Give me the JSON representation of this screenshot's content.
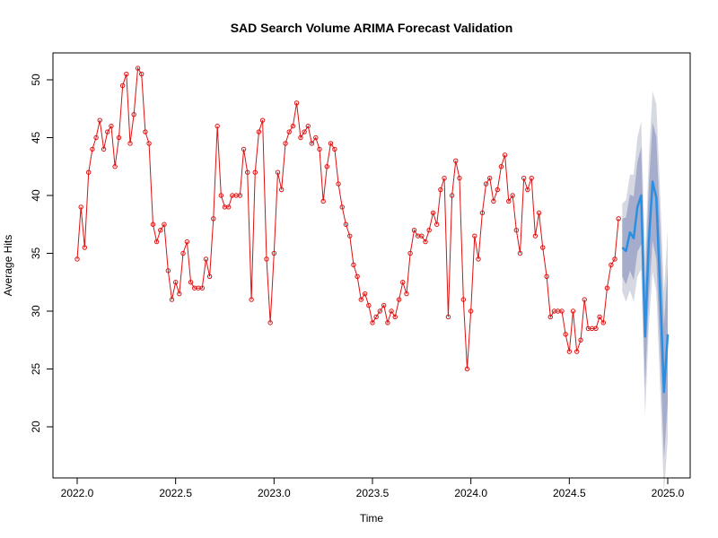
{
  "chart_data": {
    "type": "line",
    "title": "SAD Search Volume ARIMA Forecast Validation",
    "xlabel": "Time",
    "ylabel": "Average Hits",
    "xlim": [
      2022.0,
      2025.0
    ],
    "ylim": [
      20,
      50
    ],
    "x_ticks": [
      2022.0,
      2022.5,
      2023.0,
      2023.5,
      2024.0,
      2024.5,
      2025.0
    ],
    "x_tick_labels": [
      "2022.0",
      "2022.5",
      "2023.0",
      "2023.5",
      "2024.0",
      "2024.5",
      "2025.0"
    ],
    "y_ticks": [
      20,
      25,
      30,
      35,
      40,
      45,
      50
    ],
    "y_tick_labels": [
      "20",
      "25",
      "30",
      "35",
      "40",
      "45",
      "50"
    ],
    "grid": false,
    "colors": {
      "observed": "#dd1111",
      "forecast": "#2a8fe0",
      "band80": "#a6accc",
      "band95": "#d6d8e2"
    },
    "series": [
      {
        "role": "observed",
        "x": [
          2022.0,
          2022.019,
          2022.038,
          2022.058,
          2022.077,
          2022.096,
          2022.115,
          2022.135,
          2022.154,
          2022.173,
          2022.192,
          2022.212,
          2022.231,
          2022.25,
          2022.269,
          2022.288,
          2022.308,
          2022.327,
          2022.346,
          2022.365,
          2022.385,
          2022.404,
          2022.423,
          2022.442,
          2022.462,
          2022.481,
          2022.5,
          2022.519,
          2022.538,
          2022.558,
          2022.577,
          2022.596,
          2022.615,
          2022.635,
          2022.654,
          2022.673,
          2022.692,
          2022.712,
          2022.731,
          2022.75,
          2022.769,
          2022.788,
          2022.808,
          2022.827,
          2022.846,
          2022.865,
          2022.885,
          2022.904,
          2022.923,
          2022.942,
          2022.962,
          2022.981,
          2023.0,
          2023.019,
          2023.038,
          2023.058,
          2023.077,
          2023.096,
          2023.115,
          2023.135,
          2023.154,
          2023.173,
          2023.192,
          2023.212,
          2023.231,
          2023.25,
          2023.269,
          2023.288,
          2023.308,
          2023.327,
          2023.346,
          2023.365,
          2023.385,
          2023.404,
          2023.423,
          2023.442,
          2023.462,
          2023.481,
          2023.5,
          2023.519,
          2023.538,
          2023.558,
          2023.577,
          2023.596,
          2023.615,
          2023.635,
          2023.654,
          2023.673,
          2023.692,
          2023.712,
          2023.731,
          2023.75,
          2023.769,
          2023.788,
          2023.808,
          2023.827,
          2023.846,
          2023.865,
          2023.885,
          2023.904,
          2023.923,
          2023.942,
          2023.962,
          2023.981,
          2024.0,
          2024.019,
          2024.038,
          2024.058,
          2024.077,
          2024.096,
          2024.115,
          2024.135,
          2024.154,
          2024.173,
          2024.192,
          2024.212,
          2024.231,
          2024.25,
          2024.269,
          2024.288,
          2024.308,
          2024.327,
          2024.346,
          2024.365,
          2024.385,
          2024.404,
          2024.423,
          2024.442,
          2024.462,
          2024.481,
          2024.5,
          2024.519,
          2024.538,
          2024.558,
          2024.577,
          2024.596,
          2024.615,
          2024.635,
          2024.654,
          2024.673,
          2024.692,
          2024.712,
          2024.731,
          2024.75
        ],
        "values": [
          34.5,
          39.0,
          35.5,
          42.0,
          44.0,
          45.0,
          46.5,
          44.0,
          45.5,
          46.0,
          42.5,
          45.0,
          49.5,
          50.5,
          44.5,
          47.0,
          51.0,
          50.5,
          45.5,
          44.5,
          37.5,
          36.0,
          37.0,
          37.5,
          33.5,
          31.0,
          32.5,
          31.5,
          35.0,
          36.0,
          32.5,
          32.0,
          32.0,
          32.0,
          34.5,
          33.0,
          38.0,
          46.0,
          40.0,
          39.0,
          39.0,
          40.0,
          40.0,
          40.0,
          44.0,
          42.0,
          31.0,
          42.0,
          45.5,
          46.5,
          34.5,
          29.0,
          35.0,
          42.0,
          40.5,
          44.5,
          45.5,
          46.0,
          48.0,
          45.0,
          45.5,
          46.0,
          44.5,
          45.0,
          44.0,
          39.5,
          42.5,
          44.5,
          44.0,
          41.0,
          39.0,
          37.5,
          36.5,
          34.0,
          33.0,
          31.0,
          31.5,
          30.5,
          29.0,
          29.5,
          30.0,
          30.5,
          29.0,
          30.0,
          29.5,
          31.0,
          32.5,
          31.5,
          35.0,
          37.0,
          36.5,
          36.5,
          36.0,
          37.0,
          38.5,
          37.5,
          40.5,
          41.5,
          29.5,
          40.0,
          43.0,
          41.5,
          31.0,
          25.0,
          30.0,
          36.5,
          34.5,
          38.5,
          41.0,
          41.5,
          39.5,
          40.5,
          42.5,
          43.5,
          39.5,
          40.0,
          37.0,
          35.0,
          41.5,
          40.5,
          41.5,
          36.5,
          38.5,
          35.5,
          33.0,
          29.5,
          30.0,
          30.0,
          30.0,
          28.0,
          26.5,
          30.0,
          26.5,
          27.5,
          31.0,
          28.5,
          28.5,
          28.5,
          29.5,
          29.0,
          32.0,
          34.0,
          34.5,
          38.0
        ]
      },
      {
        "role": "forecast",
        "x": [
          2024.769,
          2024.788,
          2024.808,
          2024.827,
          2024.846,
          2024.865,
          2024.885,
          2024.904,
          2024.923,
          2024.942,
          2024.962,
          2024.981,
          2025.0
        ],
        "values": [
          35.5,
          35.2,
          36.8,
          36.3,
          39.0,
          40.0,
          27.8,
          36.0,
          41.2,
          39.8,
          31.5,
          23.0,
          28.0
        ],
        "lo80": [
          33.0,
          32.3,
          33.5,
          32.7,
          35.1,
          35.8,
          23.3,
          31.2,
          36.1,
          34.5,
          26.0,
          17.3,
          22.1
        ],
        "hi80": [
          38.0,
          38.1,
          40.1,
          39.9,
          42.9,
          44.2,
          32.3,
          40.8,
          46.3,
          45.1,
          37.0,
          28.7,
          33.9
        ],
        "lo95": [
          31.7,
          30.8,
          31.8,
          30.8,
          33.0,
          33.6,
          20.9,
          28.7,
          33.4,
          31.7,
          23.1,
          14.3,
          19.0
        ],
        "hi95": [
          39.3,
          39.6,
          41.8,
          41.8,
          45.0,
          46.4,
          34.7,
          43.3,
          49.0,
          47.9,
          39.9,
          31.7,
          37.0
        ]
      }
    ]
  }
}
